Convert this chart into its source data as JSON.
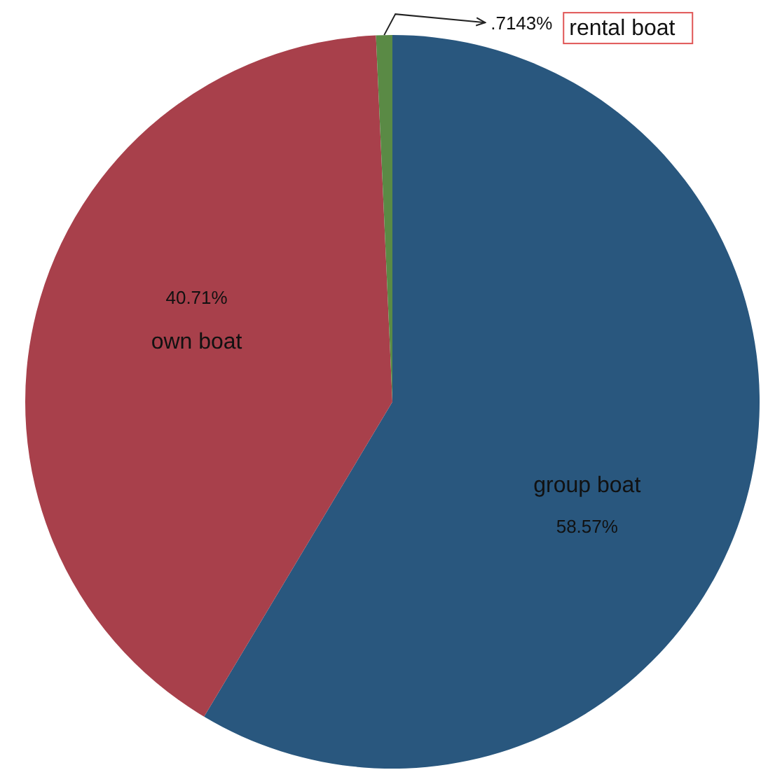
{
  "chart_data": {
    "type": "pie",
    "categories": [
      "group boat",
      "own boat",
      "rental boat"
    ],
    "values": [
      58.57,
      40.71,
      0.7143
    ],
    "colors": [
      "#29577e",
      "#a8404b",
      "#5a8a45"
    ],
    "value_labels": [
      "58.57%",
      "40.71%",
      ".7143%"
    ]
  }
}
